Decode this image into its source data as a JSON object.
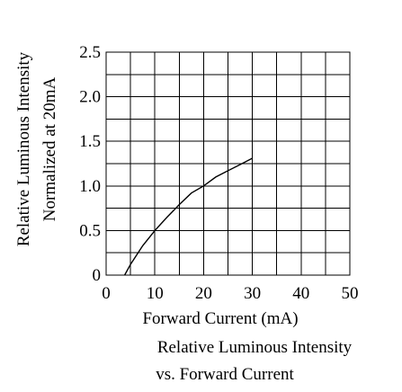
{
  "chart_data": {
    "type": "line",
    "xlabel": "Forward Current (mA)",
    "ylabel_lines": [
      "Relative Luminous Intensity",
      "Normalized at 20mA"
    ],
    "caption_lines": [
      "Relative Luminous Intensity",
      "vs. Forward Current"
    ],
    "xlim": [
      0,
      50
    ],
    "ylim": [
      0,
      2.5
    ],
    "x_ticks": [
      0,
      10,
      20,
      30,
      40,
      50
    ],
    "x_tick_labels": [
      "0",
      "10",
      "20",
      "30",
      "40",
      "50"
    ],
    "y_ticks": [
      0,
      0.5,
      1.0,
      1.5,
      2.0,
      2.5
    ],
    "y_tick_labels": [
      "0",
      "0.5",
      "1.0",
      "1.5",
      "2.0",
      "2.5"
    ],
    "x_minor_grid_step": 5,
    "y_minor_grid_step": 0.25,
    "grid": true,
    "series": [
      {
        "x": [
          3.8,
          5,
          7.5,
          10,
          12.5,
          15,
          17.5,
          20,
          22.5,
          25,
          27.5,
          30
        ],
        "y": [
          0.0,
          0.12,
          0.33,
          0.5,
          0.65,
          0.79,
          0.92,
          1.0,
          1.1,
          1.17,
          1.24,
          1.31
        ]
      }
    ]
  }
}
